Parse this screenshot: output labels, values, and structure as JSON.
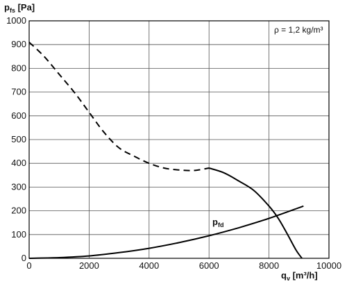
{
  "chart_data": {
    "type": "line",
    "ylabel": {
      "main": "p",
      "sub": "fs",
      "unit": " [Pa]"
    },
    "xlabel": {
      "main": "q",
      "sub": "v",
      "unit": " [m³/h]"
    },
    "annotation": "ρ = 1,2 kg/m³",
    "xlim": [
      0,
      10000
    ],
    "ylim": [
      0,
      1000
    ],
    "xticks": [
      "0",
      "2000",
      "4000",
      "6000",
      "8000",
      "10000"
    ],
    "yticks": [
      "0",
      "100",
      "200",
      "300",
      "400",
      "500",
      "600",
      "700",
      "800",
      "900",
      "1000"
    ],
    "grid": true,
    "series": [
      {
        "style": "dashed",
        "color": "#000000",
        "x": [
          0,
          500,
          1000,
          1500,
          2000,
          2500,
          3000,
          3500,
          4000,
          4500,
          5000,
          5500,
          6000
        ],
        "y": [
          910,
          850,
          775,
          700,
          615,
          530,
          465,
          430,
          400,
          380,
          372,
          370,
          380
        ]
      },
      {
        "style": "solid",
        "color": "#000000",
        "x": [
          6000,
          6500,
          7000,
          7500,
          8000,
          8300,
          8600,
          8900,
          9100
        ],
        "y": [
          380,
          360,
          325,
          285,
          220,
          170,
          105,
          35,
          0
        ]
      },
      {
        "name": {
          "main": "p",
          "sub": "fd"
        },
        "style": "solid",
        "color": "#000000",
        "x": [
          0,
          1000,
          2000,
          3000,
          4000,
          5000,
          6000,
          7000,
          8000,
          9150
        ],
        "y": [
          0,
          3,
          10,
          24,
          42,
          66,
          95,
          129,
          168,
          220
        ]
      }
    ]
  }
}
